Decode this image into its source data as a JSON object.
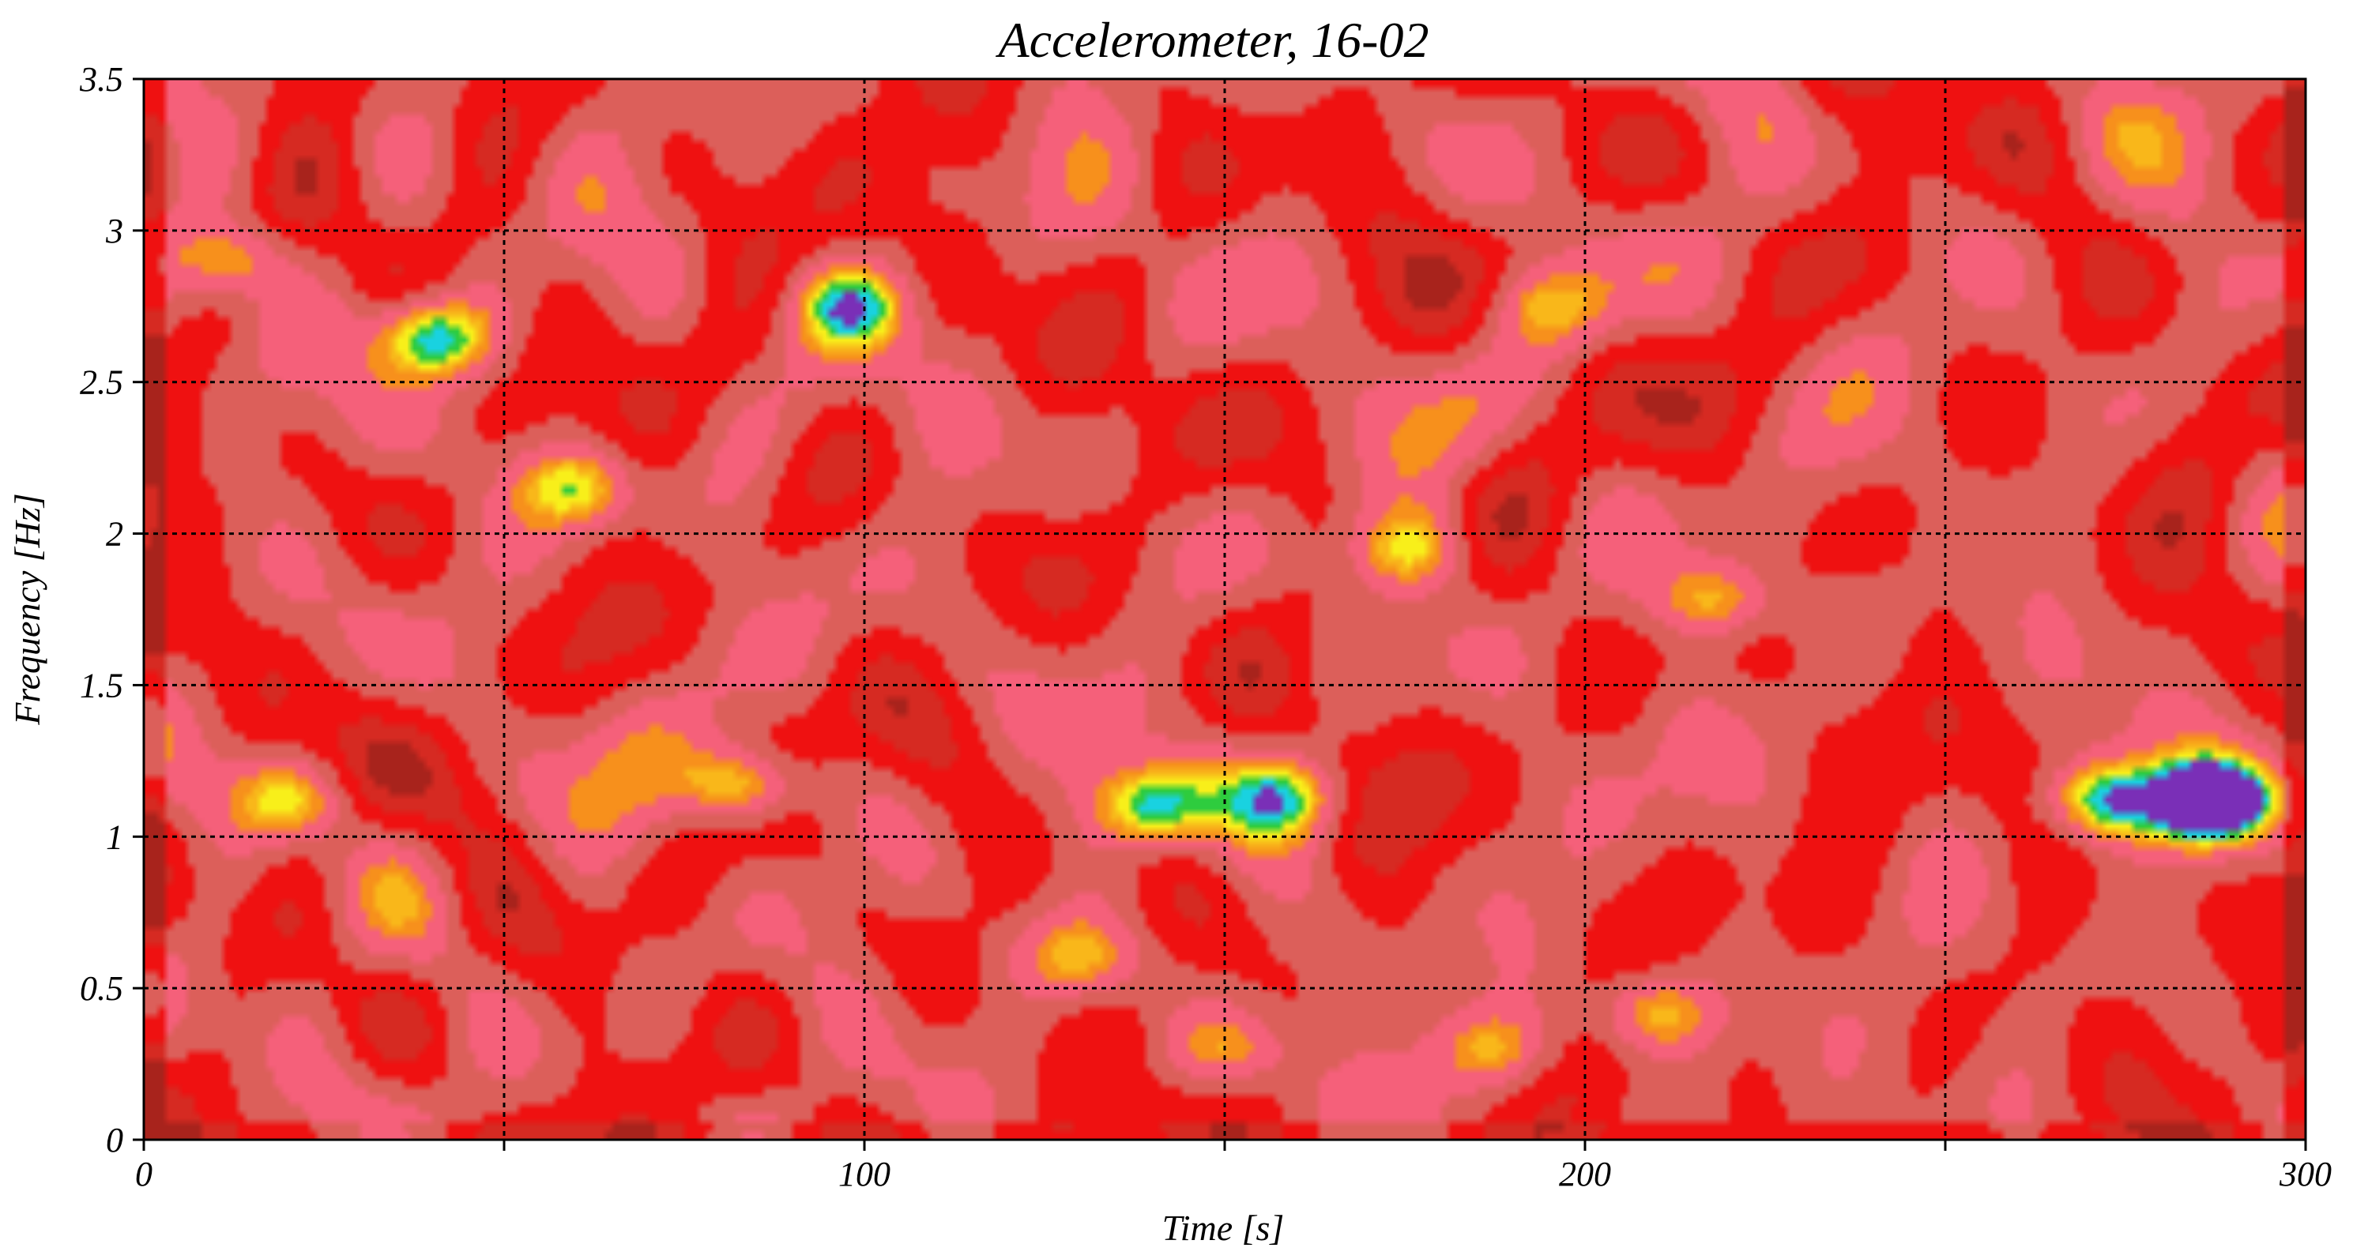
{
  "chart_data": {
    "type": "heatmap",
    "title": "Accelerometer, 16-02",
    "xlabel": "Time [s]",
    "ylabel": "Frequency [Hz]",
    "xlim": [
      0,
      300
    ],
    "ylim": [
      0,
      3.5
    ],
    "grid": true,
    "x_major_ticks": [
      {
        "value": 0,
        "label": "0"
      },
      {
        "value": 100,
        "label": "100"
      },
      {
        "value": 200,
        "label": "200"
      },
      {
        "value": 300,
        "label": "300"
      }
    ],
    "x_grid_lines": [
      50,
      100,
      150,
      200,
      250
    ],
    "y_ticks": [
      {
        "value": 0,
        "label": "0"
      },
      {
        "value": 0.5,
        "label": "0.5"
      },
      {
        "value": 1,
        "label": "1"
      },
      {
        "value": 1.5,
        "label": "1.5"
      },
      {
        "value": 2,
        "label": "2"
      },
      {
        "value": 2.5,
        "label": "2.5"
      },
      {
        "value": 3,
        "label": "3"
      },
      {
        "value": 3.5,
        "label": "3.5"
      }
    ],
    "colors": [
      "#a8231c",
      "#d62a22",
      "#ef1111",
      "#dc5f5a",
      "#f5607a",
      "#f7901c",
      "#f9b71a",
      "#f8ef1a",
      "#2ecc3e",
      "#19d2e0",
      "#7a2fb7"
    ],
    "level_breaks": [
      0.08,
      0.18,
      0.3,
      0.42,
      0.55,
      0.63,
      0.7,
      0.78,
      0.85,
      0.93
    ],
    "resolution": {
      "nx": 300,
      "ny": 120
    },
    "peaks": [
      {
        "t": 287,
        "f": 1.12,
        "amp": 1.02
      },
      {
        "t": 272,
        "f": 1.12,
        "amp": 0.62
      },
      {
        "t": 40,
        "f": 2.65,
        "amp": 0.62
      },
      {
        "t": 83,
        "f": 1.17,
        "amp": 0.55
      },
      {
        "t": 140,
        "f": 1.1,
        "amp": 0.58
      },
      {
        "t": 158,
        "f": 1.13,
        "amp": 0.45
      },
      {
        "t": 98,
        "f": 2.75,
        "amp": 0.45
      },
      {
        "t": 60,
        "f": 2.15,
        "amp": 0.42
      },
      {
        "t": 176,
        "f": 1.95,
        "amp": 0.4
      },
      {
        "t": 218,
        "f": 1.78,
        "amp": 0.4
      },
      {
        "t": 210,
        "f": 0.42,
        "amp": 0.4
      },
      {
        "t": 12,
        "f": 2.9,
        "amp": 0.35
      },
      {
        "t": 20,
        "f": 1.12,
        "amp": 0.38
      },
      {
        "t": 187,
        "f": 0.3,
        "amp": 0.32
      },
      {
        "t": 130,
        "f": 0.6,
        "amp": 0.32
      },
      {
        "t": 195,
        "f": 2.75,
        "amp": 0.3
      },
      {
        "t": 150,
        "f": 0.3,
        "amp": 0.3
      }
    ]
  }
}
